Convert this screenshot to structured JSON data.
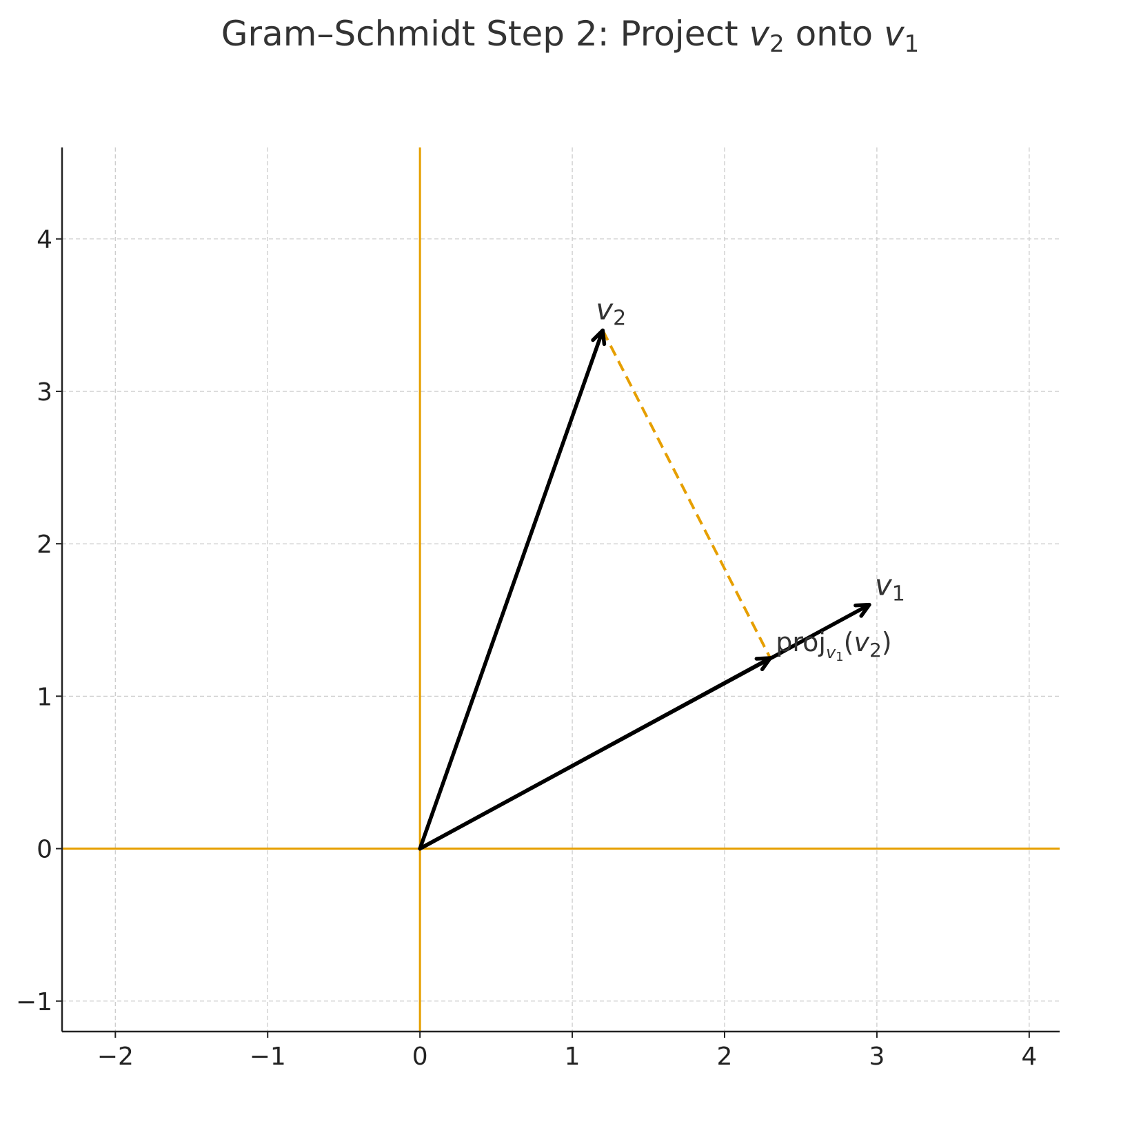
{
  "chart_data": {
    "type": "line",
    "title": {
      "prefix": "Gram–Schmidt Step 2: Project ",
      "v2_base": "v",
      "v2_sub": "2",
      "middle": " onto ",
      "v1_base": "v",
      "v1_sub": "1"
    },
    "xlim": [
      -2.35,
      4.2
    ],
    "ylim": [
      -1.2,
      4.6
    ],
    "x_ticks": [
      -2,
      -1,
      0,
      1,
      2,
      3,
      4
    ],
    "y_ticks": [
      -1,
      0,
      1,
      2,
      3,
      4
    ],
    "x_tick_labels": [
      "−2",
      "−1",
      "0",
      "1",
      "2",
      "3",
      "4"
    ],
    "y_tick_labels": [
      "−1",
      "0",
      "1",
      "2",
      "3",
      "4"
    ],
    "grid": true,
    "axis_lines_color": "#E69F00",
    "vector_color": "#000000",
    "dashed_color": "#E69F00",
    "grid_color": "#cccccc",
    "vectors": [
      {
        "name": "v1",
        "from": [
          0,
          0
        ],
        "to": [
          2.95,
          1.6
        ]
      },
      {
        "name": "v2",
        "from": [
          0,
          0
        ],
        "to": [
          1.2,
          3.4
        ]
      },
      {
        "name": "proj",
        "from": [
          0,
          0
        ],
        "to": [
          2.3,
          1.25
        ]
      }
    ],
    "dashed_segment": {
      "from": [
        1.2,
        3.4
      ],
      "to": [
        2.3,
        1.25
      ]
    },
    "labels": {
      "v1": {
        "base": "v",
        "sub": "1"
      },
      "v2": {
        "base": "v",
        "sub": "2"
      },
      "proj": {
        "prefix": "proj",
        "sub_base": "v",
        "sub_sub": "1",
        "open": "(",
        "arg_base": "v",
        "arg_sub": "2",
        "close": ")"
      }
    }
  }
}
